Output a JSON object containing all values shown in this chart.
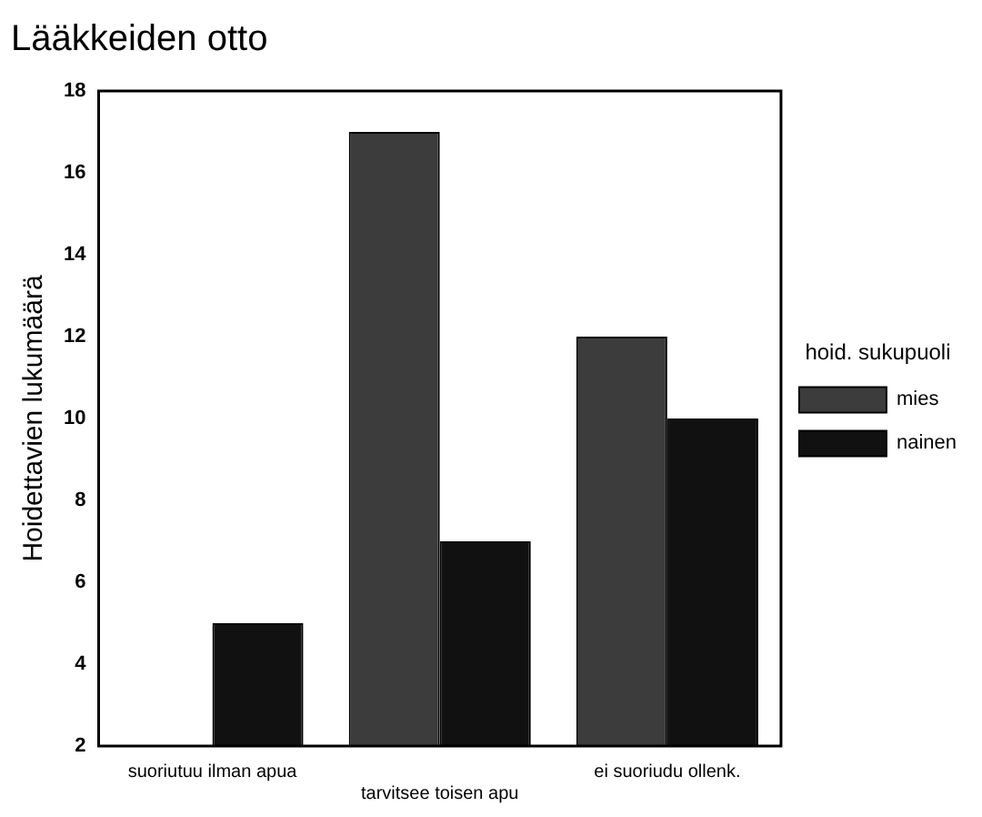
{
  "chart_data": {
    "type": "bar",
    "title": "Lääkkeiden otto",
    "ylabel": "Hoidettavien lukumäärä",
    "legend_title": "hoid. sukupuoli",
    "categories": [
      "suoriutuu ilman apua",
      "tarvitsee toisen apu",
      "ei suoriudu ollenk."
    ],
    "series": [
      {
        "name": "mies",
        "color": "#3c3c3c",
        "values": [
          null,
          17,
          12
        ]
      },
      {
        "name": "nainen",
        "color": "#111111",
        "values": [
          5,
          7,
          10
        ]
      }
    ],
    "ylim": [
      2,
      18
    ],
    "yticks": [
      2,
      4,
      6,
      8,
      10,
      12,
      14,
      16,
      18
    ],
    "grid": false,
    "legend": "right"
  }
}
